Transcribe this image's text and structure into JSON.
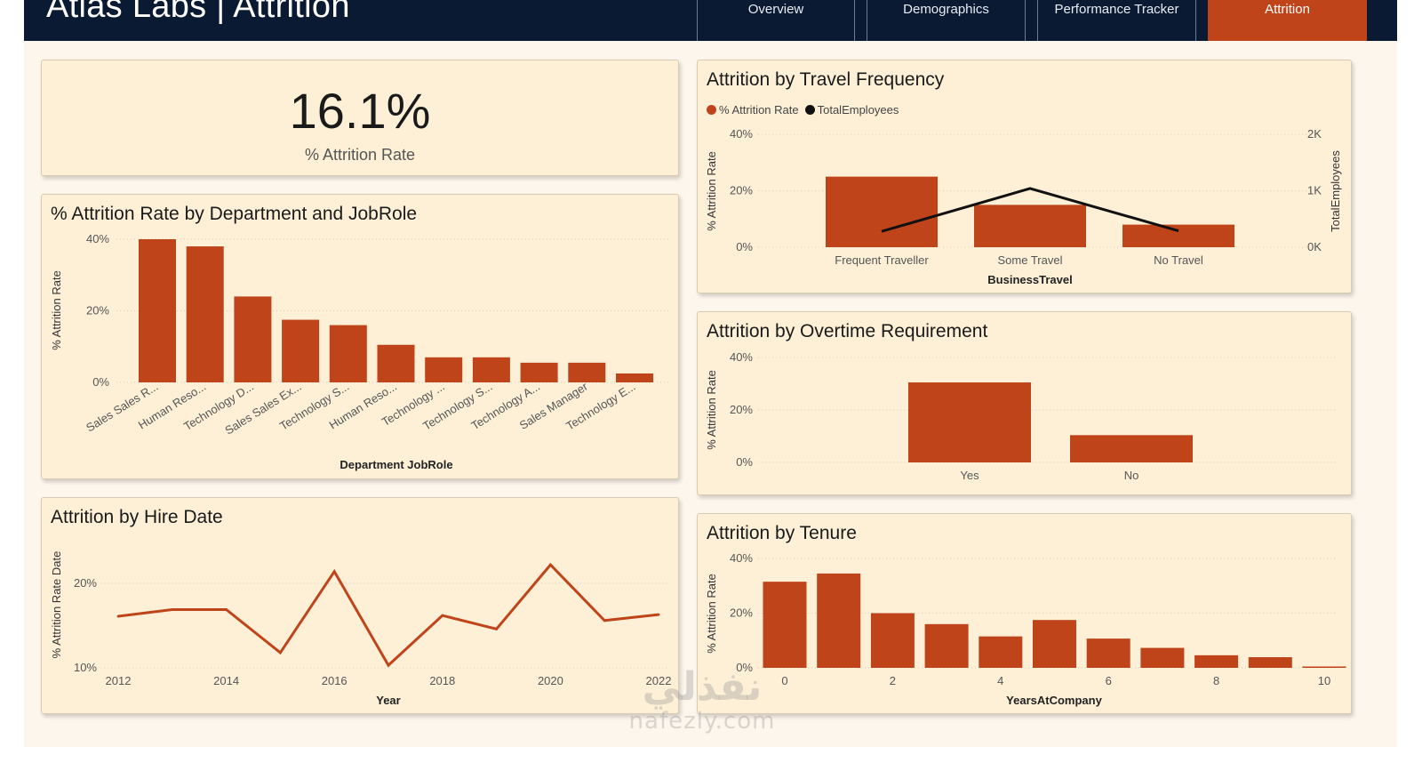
{
  "header": {
    "title": "Atlas Labs | Attrition",
    "tabs": [
      {
        "label": "Overview",
        "active": false
      },
      {
        "label": "Demographics",
        "active": false
      },
      {
        "label": "Performance Tracker",
        "active": false
      },
      {
        "label": "Attrition",
        "active": true
      }
    ]
  },
  "colors": {
    "bar": "#c0441a",
    "line_black": "#111111",
    "card_bg": "#fdf0d7",
    "header_bg": "#0b1a33"
  },
  "kpi": {
    "value": "16.1%",
    "label": "% Attrition Rate"
  },
  "watermark": {
    "arabic": "نفذلي",
    "latin": "nafezly.com"
  },
  "chart_data": [
    {
      "id": "dept_jobrole",
      "type": "bar",
      "title": "% Attrition Rate by Department and JobRole",
      "xlabel": "Department JobRole",
      "ylabel": "% Attrition Rate",
      "ylim": [
        0,
        40
      ],
      "yticks": [
        "0%",
        "20%",
        "40%"
      ],
      "grid": true,
      "categories": [
        "Sales Sales R...",
        "Human Reso...",
        "Technology D...",
        "Sales Sales Ex...",
        "Technology S...",
        "Human Reso...",
        "Technology ...",
        "Technology S...",
        "Technology A...",
        "Sales Manager",
        "Technology E..."
      ],
      "values": [
        40,
        38,
        24,
        17.5,
        16,
        10.5,
        7,
        7,
        5.5,
        5.5,
        2.5
      ]
    },
    {
      "id": "hire_date",
      "type": "line",
      "title": "Attrition by Hire Date",
      "xlabel": "Year",
      "ylabel": "% Attrition Rate Date",
      "ylim": [
        10,
        22
      ],
      "yticks": [
        "10%",
        "20%"
      ],
      "xticks": [
        "2012",
        "2014",
        "2016",
        "2018",
        "2020",
        "2022"
      ],
      "x": [
        2012,
        2013,
        2014,
        2015,
        2016,
        2017,
        2018,
        2019,
        2020,
        2021,
        2022
      ],
      "values": [
        16.1,
        16.9,
        16.9,
        11.8,
        21.4,
        10.3,
        16.2,
        14.6,
        22.2,
        15.6,
        16.3
      ]
    },
    {
      "id": "travel",
      "type": "bar",
      "title": "Attrition by Travel Frequency",
      "xlabel": "BusinessTravel",
      "ylabel": "% Attrition Rate",
      "ylabel_right": "TotalEmployees",
      "ylim": [
        0,
        40
      ],
      "ylim_right": [
        0,
        2000
      ],
      "yticks": [
        "0%",
        "20%",
        "40%"
      ],
      "yticks_right": [
        "0K",
        "1K",
        "2K"
      ],
      "legend": [
        "% Attrition Rate",
        "TotalEmployees"
      ],
      "legend_position": "top-left",
      "categories": [
        "Frequent Traveller",
        "Some Travel",
        "No Travel"
      ],
      "series": [
        {
          "name": "% Attrition Rate",
          "type": "bar",
          "values": [
            25,
            15,
            8
          ]
        },
        {
          "name": "TotalEmployees",
          "type": "line",
          "values": [
            280,
            1040,
            290
          ]
        }
      ]
    },
    {
      "id": "overtime",
      "type": "bar",
      "title": "Attrition by Overtime Requirement",
      "xlabel": "",
      "ylabel": "% Attrition Rate",
      "ylim": [
        0,
        40
      ],
      "yticks": [
        "0%",
        "20%",
        "40%"
      ],
      "categories": [
        "Yes",
        "No"
      ],
      "values": [
        30.5,
        10.4
      ]
    },
    {
      "id": "tenure",
      "type": "bar",
      "title": "Attrition by Tenure",
      "xlabel": "YearsAtCompany",
      "ylabel": "% Attrition Rate",
      "ylim": [
        0,
        40
      ],
      "yticks": [
        "0%",
        "20%",
        "40%"
      ],
      "xticks": [
        "0",
        "2",
        "4",
        "6",
        "8",
        "10"
      ],
      "x": [
        0,
        1,
        2,
        3,
        4,
        5,
        6,
        7,
        8,
        9,
        10
      ],
      "values": [
        31.5,
        34.5,
        20,
        16,
        11.5,
        17.5,
        10.7,
        7.3,
        4.6,
        3.9,
        0.5
      ]
    }
  ]
}
